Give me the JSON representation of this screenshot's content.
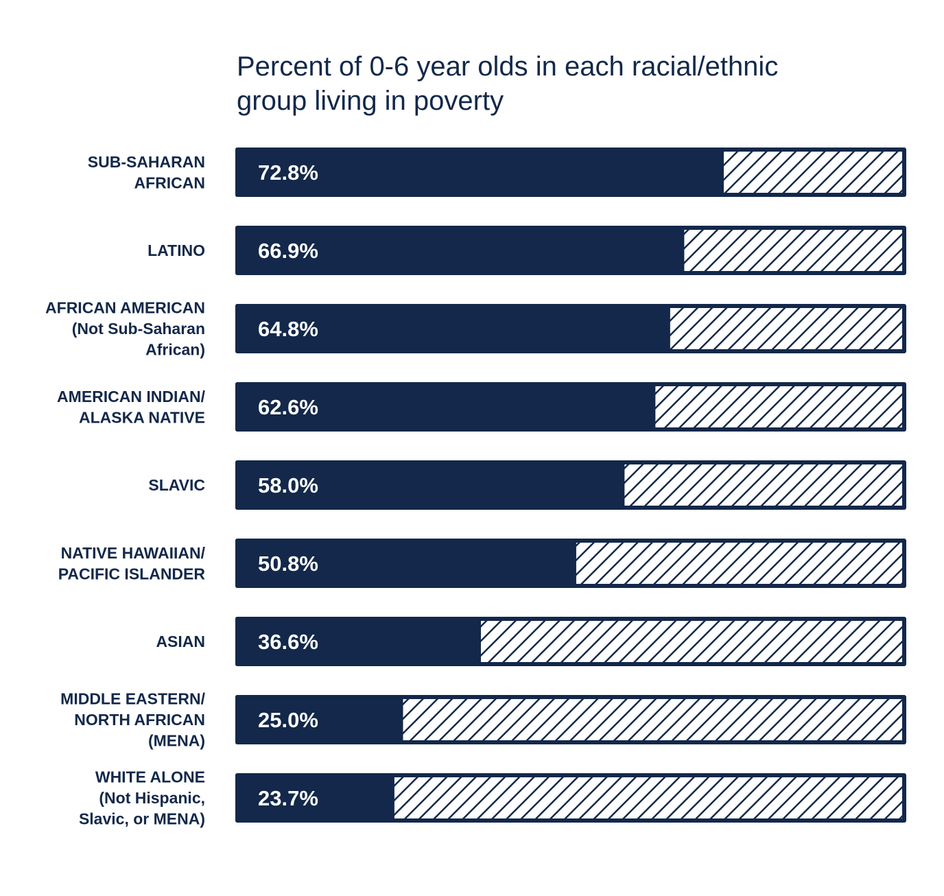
{
  "chart_data": {
    "type": "bar",
    "orientation": "horizontal",
    "title": "Percent of 0-6 year olds in each racial/ethnic group living in poverty",
    "categories": [
      [
        "SUB-SAHARAN",
        "AFRICAN"
      ],
      [
        "LATINO"
      ],
      [
        "AFRICAN AMERICAN",
        "(Not Sub-Saharan",
        "African)"
      ],
      [
        "AMERICAN INDIAN/",
        "ALASKA NATIVE"
      ],
      [
        "SLAVIC"
      ],
      [
        "NATIVE HAWAIIAN/",
        "PACIFIC ISLANDER"
      ],
      [
        "ASIAN"
      ],
      [
        "MIDDLE EASTERN/",
        "NORTH AFRICAN",
        "(MENA)"
      ],
      [
        "WHITE ALONE",
        "(Not Hispanic,",
        "Slavic, or MENA)"
      ]
    ],
    "values": [
      72.8,
      66.9,
      64.8,
      62.6,
      58.0,
      50.8,
      36.6,
      25.0,
      23.7
    ],
    "value_labels": [
      "72.8%",
      "66.9%",
      "64.8%",
      "62.6%",
      "58.0%",
      "50.8%",
      "36.6%",
      "25.0%",
      "23.7%"
    ],
    "xlim": [
      0,
      100
    ],
    "remainder_fill": "hatched",
    "grid": false,
    "colors": {
      "bar": "#13284a",
      "remainder_hatch": "#13284a",
      "remainder_bg": "#ffffff",
      "text": "#13284a",
      "value_text": "#ffffff"
    }
  }
}
